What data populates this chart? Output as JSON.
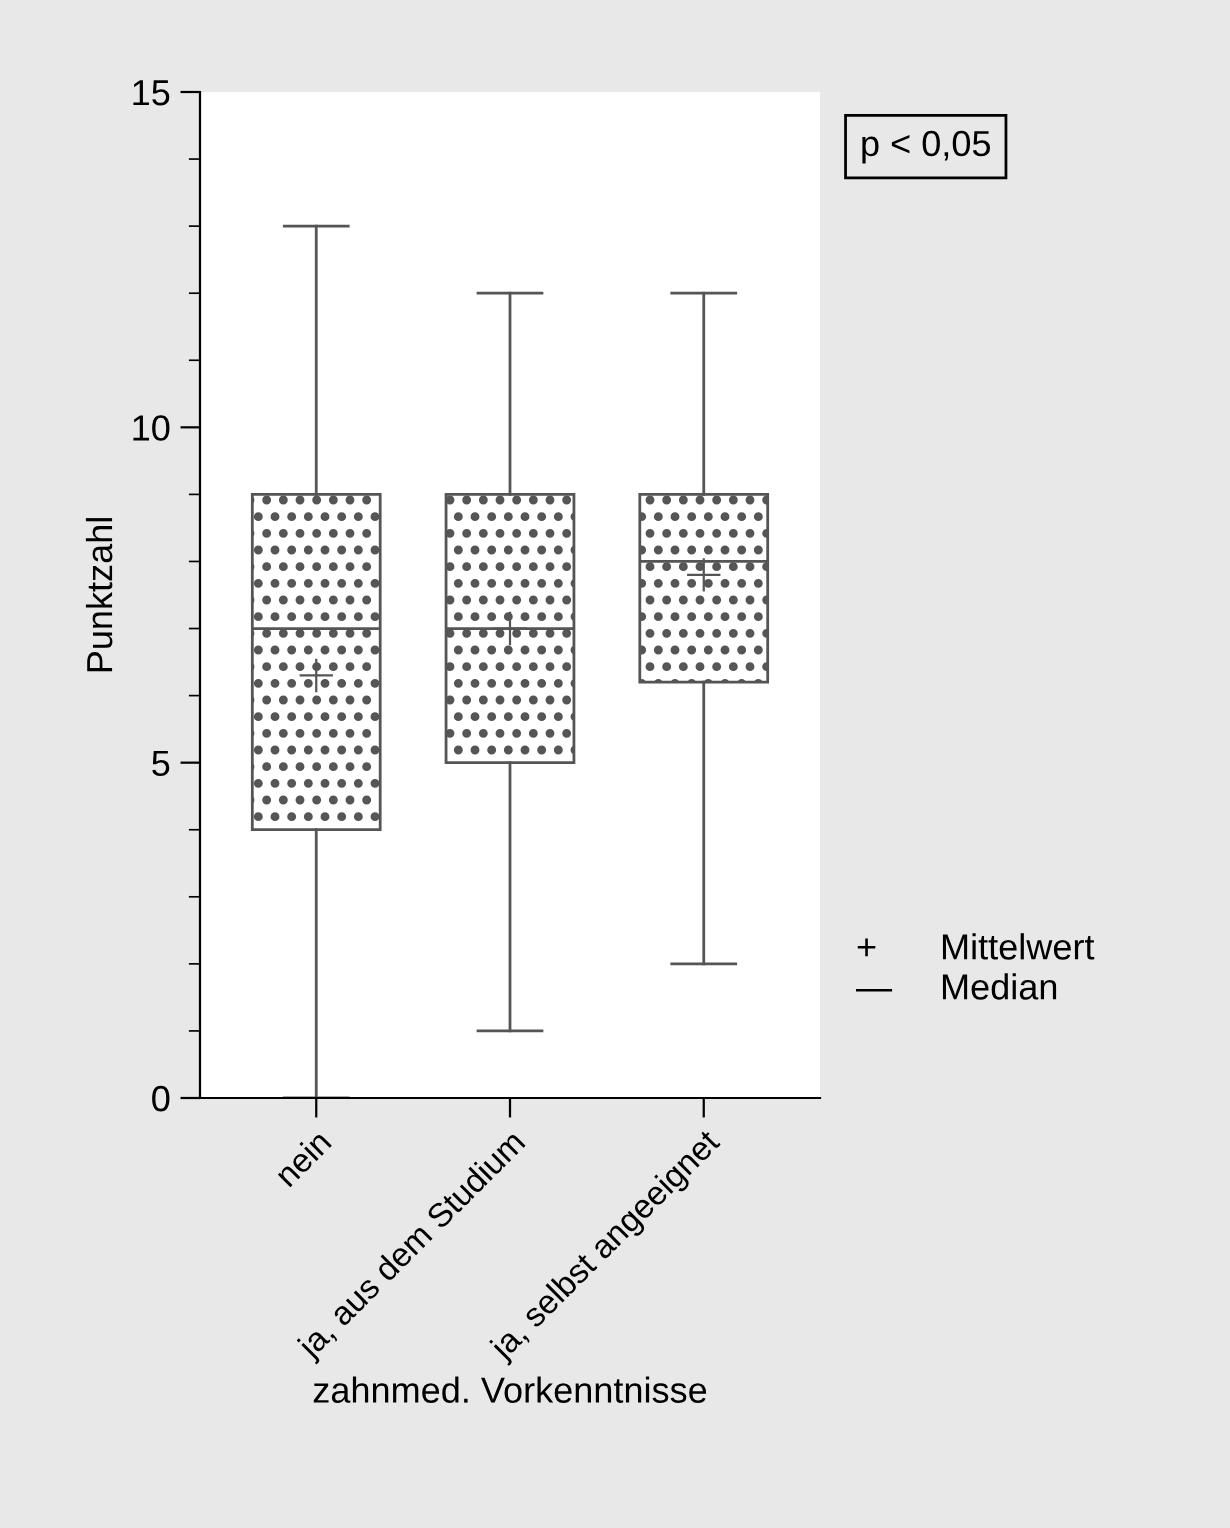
{
  "chart_data": {
    "type": "box",
    "xlabel": "zahnmed. Vorkenntnisse",
    "ylabel": "Punktzahl",
    "categories": [
      "nein",
      "ja, aus dem Studium",
      "ja, selbst angeeignet"
    ],
    "boxes": [
      {
        "low": 0,
        "q1": 4,
        "median": 7,
        "q3": 9,
        "high": 13,
        "mean": 6.3
      },
      {
        "low": 1,
        "q1": 5,
        "median": 7,
        "q3": 9,
        "high": 12,
        "mean": 7.0
      },
      {
        "low": 2,
        "q1": 6.2,
        "median": 8,
        "q3": 9,
        "high": 12,
        "mean": 7.8
      }
    ],
    "ylim": [
      0,
      15
    ],
    "yticks": [
      0,
      5,
      10,
      15
    ],
    "grid": false,
    "annotations": [
      "p < 0,05",
      "+",
      "Mittelwert",
      "—",
      "Median"
    ]
  }
}
